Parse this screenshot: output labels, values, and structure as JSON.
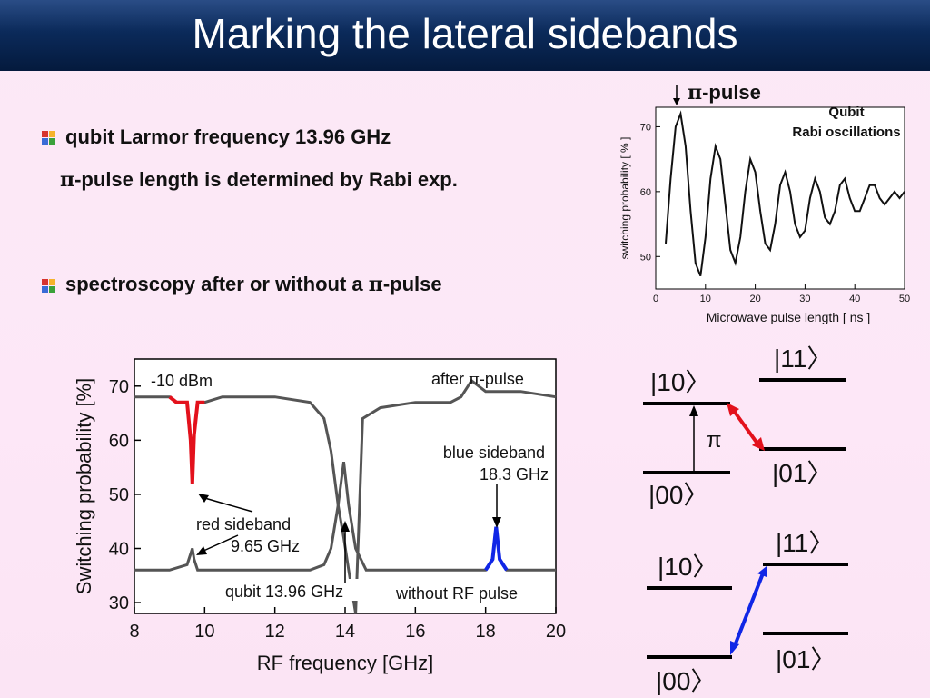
{
  "slide": {
    "title": "Marking the lateral sidebands",
    "bullets": [
      {
        "text": "qubit Larmor frequency 13.96 GHz"
      },
      {
        "sub_pi": "π",
        "sub_rest": "-pulse length is determined by Rabi exp."
      },
      {
        "pre": "spectroscopy after or without a ",
        "pi": "π",
        "post": "-pulse"
      }
    ]
  },
  "rabi_plot": {
    "annotation_pi": "π",
    "annotation_text": "-pulse",
    "label_line1": "Qubit",
    "label_line2": "Rabi oscillations",
    "xlabel": "Microwave pulse length [ ns ]",
    "ylabel": "switching probability  [ % ]",
    "x_ticks": [
      "0",
      "10",
      "20",
      "30",
      "40",
      "50"
    ],
    "y_ticks": [
      "50",
      "60",
      "70"
    ]
  },
  "spectrum_plot": {
    "xlabel": "RF frequency [GHz]",
    "ylabel": "Switching probability [%]",
    "x_ticks": [
      "8",
      "10",
      "12",
      "14",
      "16",
      "18",
      "20"
    ],
    "y_ticks": [
      "30",
      "40",
      "50",
      "60",
      "70"
    ],
    "power_label": "-10 dBm",
    "after_pre": "after ",
    "after_pi": "π",
    "after_post": "-pulse",
    "blue_label_1": "blue sideband",
    "blue_label_2": "18.3 GHz",
    "red_label_1": "red sideband",
    "red_label_2": "9.65 GHz",
    "qubit_label": "qubit 13.96 GHz",
    "without_label": "without RF pulse"
  },
  "levels_top": {
    "l10": "|10〉",
    "l11": "|11〉",
    "l00": "|00〉",
    "l01": "|01〉",
    "pi": "π"
  },
  "levels_bottom": {
    "l10": "|10〉",
    "l11": "|11〉",
    "l00": "|00〉",
    "l01": "|01〉"
  },
  "colors": {
    "red_sideband": "#e3111c",
    "blue_sideband": "#1026e6",
    "trace": "#555555",
    "title_bg": "#0b2a5a"
  },
  "chart_data": [
    {
      "type": "line",
      "title": "",
      "xlabel": "Microwave pulse length [ ns ]",
      "ylabel": "switching probability  [ % ]",
      "xlim": [
        0,
        50
      ],
      "ylim": [
        45,
        73
      ],
      "series": [
        {
          "x": [
            2,
            3,
            4,
            5,
            6,
            7,
            8,
            9,
            10,
            11,
            12,
            13,
            14,
            15,
            16,
            17,
            18,
            19,
            20,
            21,
            22,
            23,
            24,
            25,
            26,
            27,
            28,
            29,
            30,
            31,
            32,
            33,
            34,
            35,
            36,
            37,
            38,
            39,
            40,
            41,
            42,
            43,
            44,
            45,
            46,
            47,
            48,
            49,
            50
          ],
          "values": [
            52,
            62,
            70,
            72,
            67,
            57,
            49,
            47,
            53,
            62,
            67,
            65,
            58,
            51,
            49,
            53,
            60,
            65,
            63,
            57,
            52,
            51,
            55,
            61,
            63,
            60,
            55,
            53,
            54,
            59,
            62,
            60,
            56,
            55,
            57,
            61,
            62,
            59,
            57,
            57,
            59,
            61,
            61,
            59,
            58,
            59,
            60,
            59,
            60
          ]
        }
      ]
    },
    {
      "type": "line",
      "title": "",
      "xlabel": "RF frequency [GHz]",
      "ylabel": "Switching probability [%]",
      "xlim": [
        8,
        20
      ],
      "ylim": [
        28,
        75
      ],
      "series": [
        {
          "x": [
            8,
            9,
            9.2,
            9.5,
            9.6,
            9.65,
            9.7,
            9.8,
            10,
            10.5,
            11,
            12,
            13,
            13.4,
            13.6,
            13.8,
            13.96,
            14.1,
            14.3,
            14.5,
            15,
            16,
            17,
            17.3,
            17.6,
            18,
            19,
            20
          ],
          "values": [
            68,
            68,
            67,
            67,
            60,
            52,
            61,
            67,
            67,
            68,
            68,
            68,
            67,
            64,
            58,
            48,
            42,
            36,
            28,
            64,
            66,
            67,
            67,
            68,
            71,
            69,
            69,
            68
          ]
        },
        {
          "x": [
            8,
            9,
            9.5,
            9.6,
            9.65,
            9.7,
            9.8,
            10,
            11,
            12,
            13,
            13.4,
            13.6,
            13.8,
            13.96,
            14.1,
            14.3,
            14.6,
            15,
            16,
            17,
            18,
            18.2,
            18.3,
            18.4,
            18.6,
            19,
            20
          ],
          "values": [
            36,
            36,
            37,
            39,
            40,
            38,
            36,
            36,
            36,
            36,
            36,
            37,
            40,
            48,
            56,
            48,
            40,
            36,
            36,
            36,
            36,
            36,
            38,
            44,
            38,
            36,
            36,
            36
          ]
        }
      ]
    }
  ]
}
